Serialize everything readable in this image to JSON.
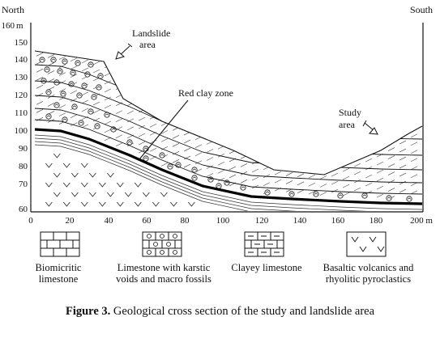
{
  "figure": {
    "north_label": "North",
    "south_label": "South",
    "y_axis": {
      "unit_label": "m",
      "ticks": [
        "160",
        "150",
        "140",
        "130",
        "120",
        "110",
        "100",
        "90",
        "80",
        "70",
        "60"
      ]
    },
    "x_axis": {
      "ticks": [
        "0",
        "20",
        "40",
        "60",
        "80",
        "100",
        "120",
        "140",
        "160",
        "180",
        "200 m"
      ]
    },
    "annotations": {
      "landslide_line1": "Landslide",
      "landslide_line2": "area",
      "red_clay_zone": "Red clay zone",
      "study_line1": "Study",
      "study_line2": "area"
    }
  },
  "legend": [
    {
      "label": "Biomicritic\nlimestone"
    },
    {
      "label": "Limestone with karstic\nvoids and macro fossils"
    },
    {
      "label": "Clayey limestone"
    },
    {
      "label": "Basaltic volcanics and\nrhyolitic pyroclastics"
    }
  ],
  "caption": {
    "bold": "Figure 3.",
    "text": " Geological cross section of the study and landslide area"
  }
}
